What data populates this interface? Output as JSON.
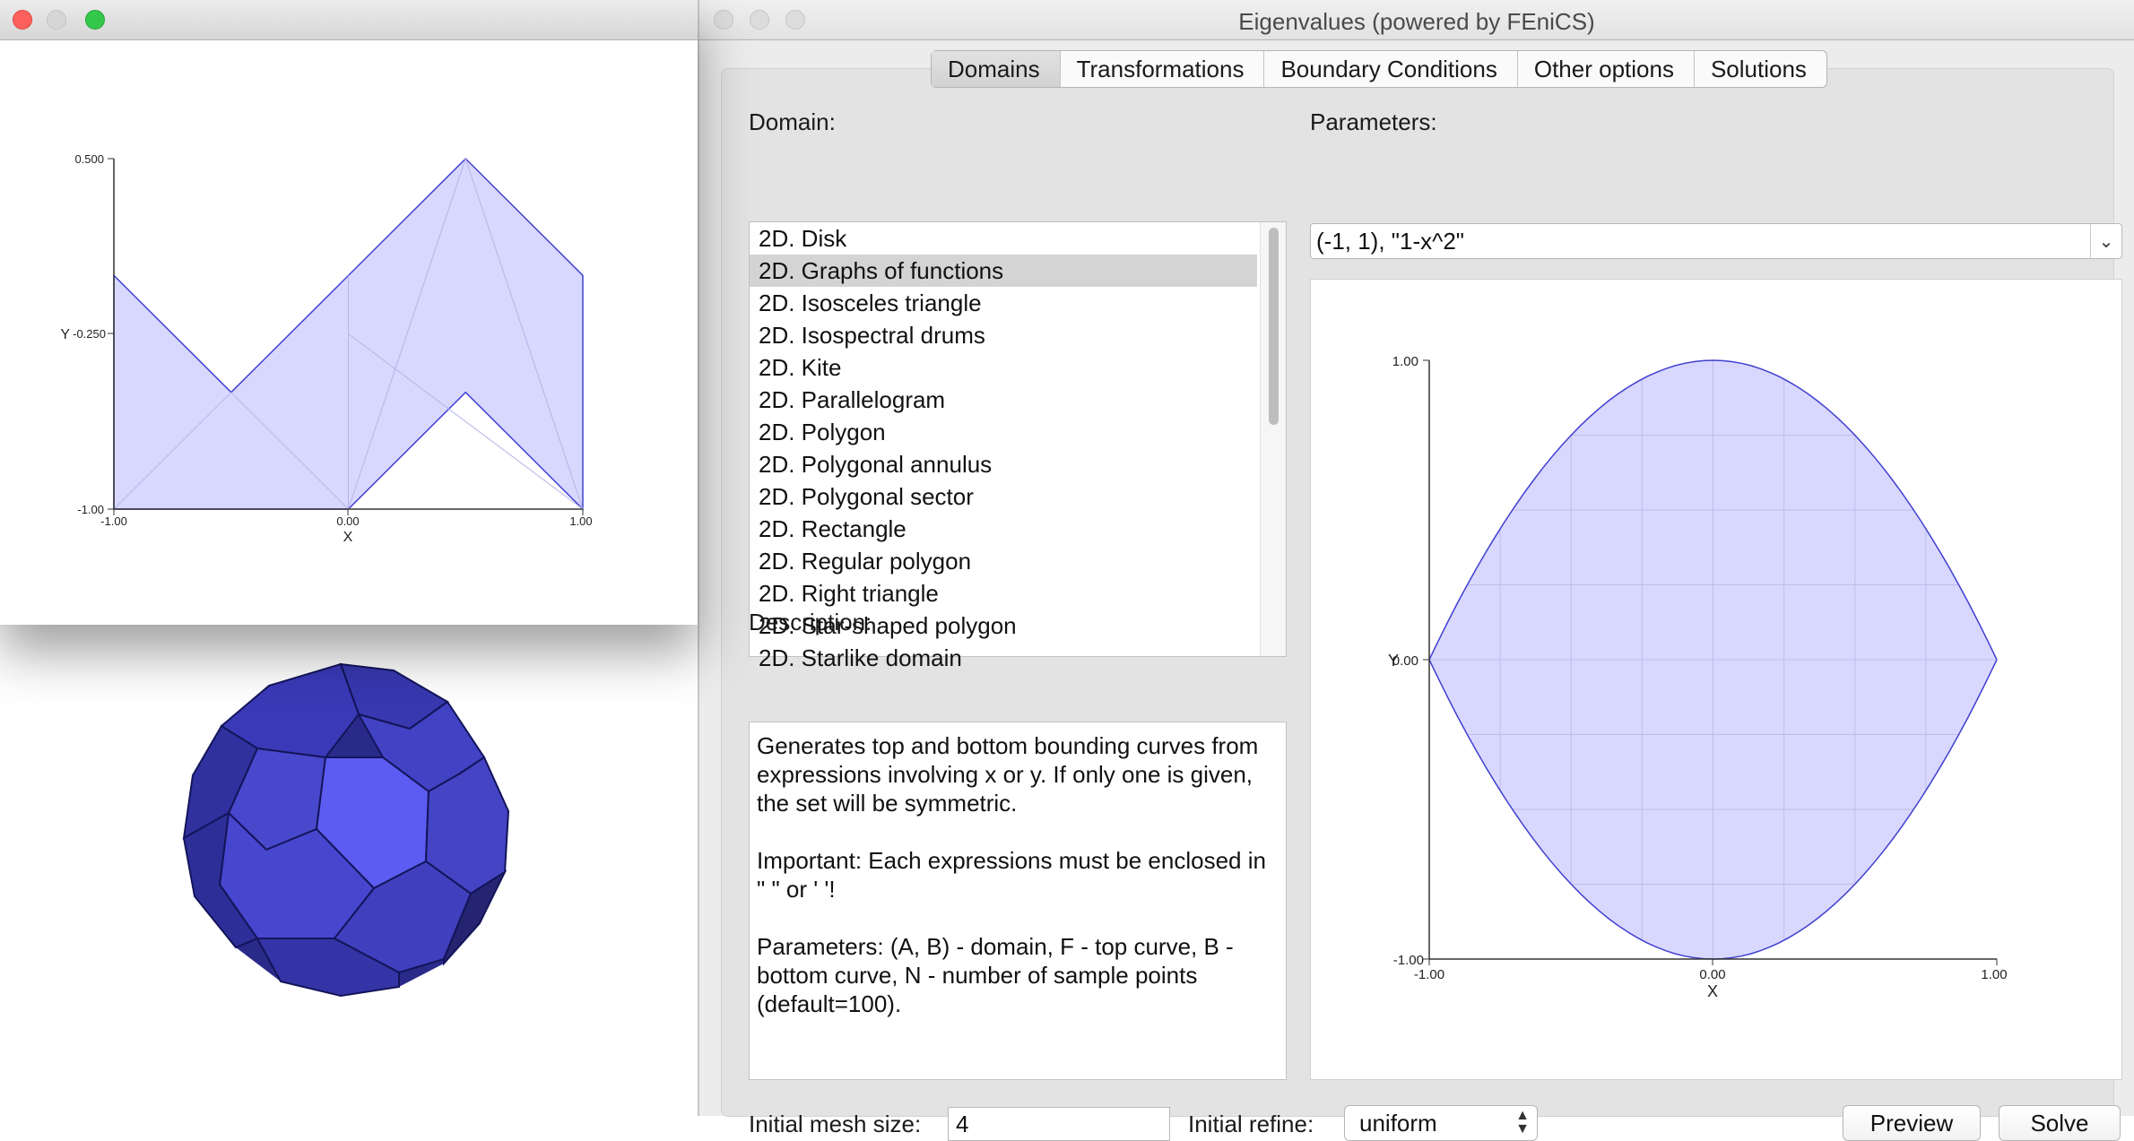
{
  "main_window": {
    "title": "Eigenvalues (powered by FEniCS)",
    "tabs": [
      {
        "label": "Domains",
        "active": true
      },
      {
        "label": "Transformations",
        "active": false
      },
      {
        "label": "Boundary Conditions",
        "active": false
      },
      {
        "label": "Other options",
        "active": false
      },
      {
        "label": "Solutions",
        "active": false
      }
    ],
    "domain_label": "Domain:",
    "domain_list": [
      "2D. Disk",
      "2D. Graphs of functions",
      "2D. Isosceles triangle",
      "2D. Isospectral drums",
      "2D. Kite",
      "2D. Parallelogram",
      "2D. Polygon",
      "2D. Polygonal annulus",
      "2D. Polygonal sector",
      "2D. Rectangle",
      "2D. Regular polygon",
      "2D. Right triangle",
      "2D. Star-shaped polygon",
      "2D. Starlike domain"
    ],
    "selected_domain": "2D. Graphs of functions",
    "parameters_label": "Parameters:",
    "parameters_value": "(-1, 1), \"1-x^2\"",
    "description_label": "Description:",
    "description": [
      "Generates top and bottom bounding curves from expressions involving x or y. If only one is given, the set will be symmetric.",
      "Important: Each expressions must be enclosed in \" \" or ' '!",
      "Parameters: (A, B) - domain, F - top curve, B - bottom curve, N - number of sample points (default=100)."
    ],
    "initial_mesh_size_label": "Initial mesh size:",
    "initial_mesh_size_value": "4",
    "initial_refine_label": "Initial refine:",
    "initial_refine_value": "uniform",
    "preview_button": "Preview",
    "solve_button": "Solve"
  },
  "left_plot": {
    "x_ticks": [
      "-1.00",
      "0.00",
      "1.00"
    ],
    "y_ticks": [
      "0.500",
      "-0.250",
      "-1.00"
    ],
    "xlabel": "X",
    "ylabel": "Y"
  },
  "preview_plot": {
    "x_ticks": [
      "-1.00",
      "0.00",
      "1.00"
    ],
    "y_ticks": [
      "1.00",
      "0.00",
      "-1.00"
    ],
    "xlabel": "X",
    "ylabel": "Y"
  },
  "chart_data": [
    {
      "type": "area",
      "xlim": [
        -1,
        1
      ],
      "ylim": [
        -1,
        0.5
      ],
      "polygon": [
        [
          -1,
          -1
        ],
        [
          0,
          -1
        ],
        [
          0.5,
          -0.5
        ],
        [
          1,
          -1
        ],
        [
          1,
          0
        ],
        [
          0.5,
          0.5
        ],
        [
          -0.5,
          -0.5
        ],
        [
          -1,
          0
        ]
      ],
      "fill": "#d8d8ff",
      "stroke": "#4040d0"
    },
    {
      "type": "area",
      "xlim": [
        -1,
        1
      ],
      "ylim": [
        -1,
        1
      ],
      "top_curve": "1-x^2",
      "bottom_curve": "-(1-x^2)",
      "fill": "#d8d8ff",
      "stroke": "#4040d0"
    }
  ],
  "colors": {
    "plot_fill": "#d8d8ff",
    "plot_stroke": "#4040d0",
    "solid_face": "#4a4ad8",
    "solid_center_face": "#6060ff"
  }
}
